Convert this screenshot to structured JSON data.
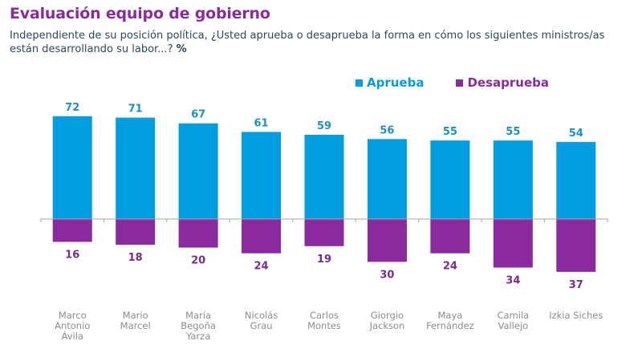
{
  "header": {
    "title": "Evaluación equipo de gobierno",
    "subtitle": "Independiente de su posición política, ¿Usted aprueba o desaprueba la forma en cómo los siguientes ministros/as están desarrollando su labor...?",
    "unit": "%"
  },
  "colors": {
    "approve": "#009ee0",
    "disapprove": "#8b2a9e",
    "approve_label": "#1d8fc0",
    "disapprove_label": "#7a2b8c",
    "title": "#8a2a9b",
    "axis": "#a6a6a6"
  },
  "chart_data": {
    "type": "bar",
    "title": "Evaluación equipo de gobierno",
    "subtitle": "Independiente de su posición política, ¿Usted aprueba o desaprueba la forma en cómo los siguientes ministros/as están desarrollando su labor...? %",
    "xlabel": "",
    "ylabel": "%",
    "legend_position": "top-right",
    "grid": false,
    "diverging": true,
    "categories": [
      [
        "Marco",
        "Antonio",
        "Ávila"
      ],
      [
        "Mario",
        "Marcel"
      ],
      [
        "María",
        "Begoña",
        "Yarza"
      ],
      [
        "Nicolás",
        "Grau"
      ],
      [
        "Carlos",
        "Montes"
      ],
      [
        "Giorgio",
        "Jackson"
      ],
      [
        "Maya",
        "Fernández"
      ],
      [
        "Camila",
        "Vallejo"
      ],
      [
        "Izkia Siches"
      ]
    ],
    "series": [
      {
        "name": "Aprueba",
        "direction": "up",
        "values": [
          72,
          71,
          67,
          61,
          59,
          56,
          55,
          55,
          54
        ]
      },
      {
        "name": "Desaprueba",
        "direction": "down",
        "values": [
          16,
          18,
          20,
          24,
          19,
          30,
          24,
          34,
          37
        ]
      }
    ],
    "ylim": [
      -37,
      72
    ]
  }
}
